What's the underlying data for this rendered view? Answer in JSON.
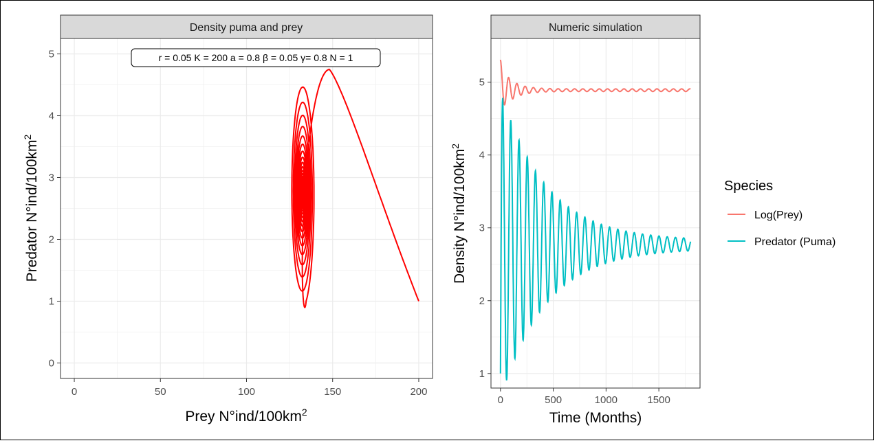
{
  "chart_data": [
    {
      "type": "line",
      "panel_title": "Density puma and prey",
      "xlabel": "Prey N°ind/100km",
      "xlabel_sup": "2",
      "ylabel": "Predator N°ind/100km",
      "ylabel_sup": "2",
      "xlim": [
        -8,
        208
      ],
      "ylim": [
        -0.25,
        5.25
      ],
      "xticks": [
        0,
        50,
        100,
        150,
        200
      ],
      "yticks": [
        0,
        1,
        2,
        3,
        4,
        5
      ],
      "grid": true,
      "annotation": "r = 0.05 K = 200 a = 0.8 β = 0.05 γ= 0.8 N = 1",
      "line_color": "#ff0000",
      "trajectory": {
        "start": [
          200,
          1
        ],
        "peak": [
          148,
          4.75
        ],
        "equilibrium": [
          132.5,
          2.75
        ]
      }
    },
    {
      "type": "line",
      "panel_title": "Numeric simulation",
      "xlabel": "Time (Months)",
      "ylabel": "Density N°ind/100km",
      "ylabel_sup": "2",
      "xlim": [
        -90,
        1890
      ],
      "ylim": [
        0.8,
        5.6
      ],
      "xticks": [
        0,
        500,
        1000,
        1500
      ],
      "yticks": [
        1,
        2,
        3,
        4,
        5
      ],
      "grid": true,
      "legend_position": "right",
      "legend_title": "Species",
      "series": [
        {
          "name": "Log(Prey)",
          "color": "#f8766d",
          "start": 5.29,
          "equilibrium": 4.89,
          "amplitude": 0.1
        },
        {
          "name": "Predator (Puma)",
          "color": "#00bfc4",
          "start": 1.0,
          "peak": 4.75,
          "equilibrium": 2.77,
          "amplitude": 1.0
        }
      ],
      "period_months": 78,
      "t_end": 1800
    }
  ]
}
